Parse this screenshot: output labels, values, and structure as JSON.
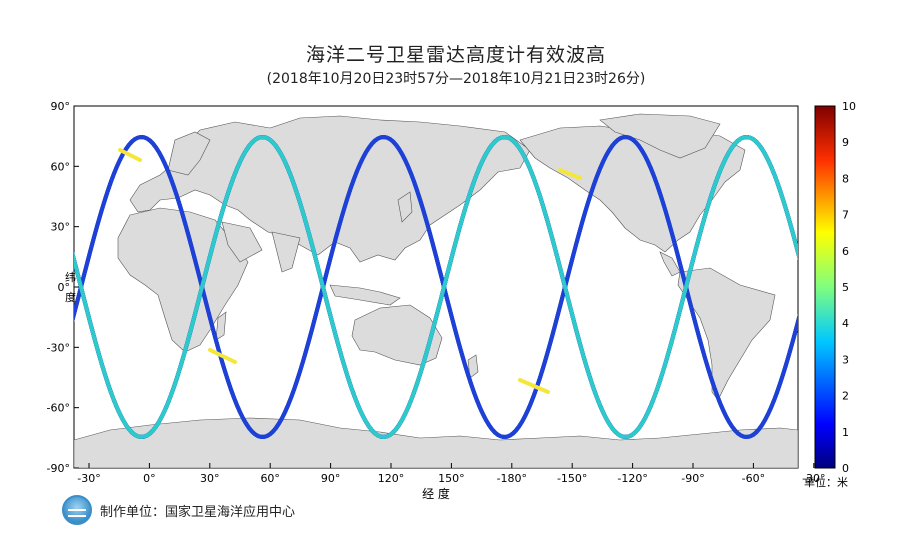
{
  "header": {
    "title": "海洋二号卫星雷达高度计有效波高",
    "subtitle": "(2018年10月20日23时57分—2018年10月21日23时26分)"
  },
  "axes": {
    "x_label": "经  度",
    "y_label_line1": "纬",
    "y_label_line2": "度",
    "x_ticks": [
      "-30°",
      "0°",
      "30°",
      "60°",
      "90°",
      "120°",
      "150°",
      "-180°",
      "-150°",
      "-120°",
      "-90°",
      "-60°",
      "-30°"
    ],
    "y_ticks": [
      "90°",
      "60°",
      "30°",
      "0°",
      "-30°",
      "-60°",
      "-90°"
    ]
  },
  "colorbar": {
    "ticks": [
      "10",
      "9",
      "8",
      "7",
      "6",
      "5",
      "4",
      "3",
      "2",
      "1",
      "0"
    ],
    "unit": "单位：米",
    "min": 0,
    "max": 10
  },
  "footer": {
    "producer": "制作单位：国家卫星海洋应用中心"
  },
  "colors": {
    "land": "#dcdcdc",
    "ocean": "#ffffff",
    "track_low": "#1f3fd6",
    "track_mid": "#2ec9c9",
    "track_high": "#f5e63a"
  }
}
